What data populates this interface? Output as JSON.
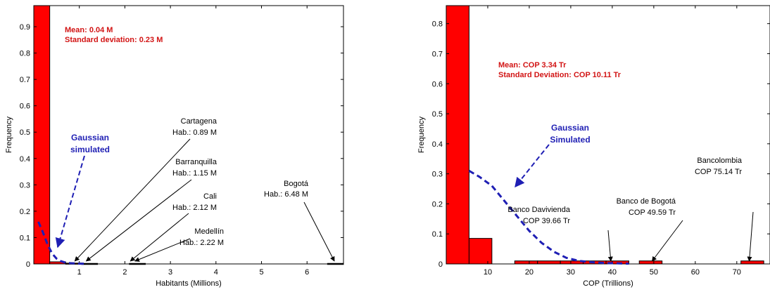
{
  "chart_data": [
    {
      "type": "bar",
      "xlabel": "Habitants (Millions)",
      "ylabel": "Frequency",
      "xlim": [
        0,
        6.8
      ],
      "ylim": [
        0,
        0.98
      ],
      "xticks": [
        "1",
        "2",
        "3",
        "4",
        "5",
        "6"
      ],
      "yticks": [
        "0",
        "0.1",
        "0.2",
        "0.3",
        "0.4",
        "0.5",
        "0.6",
        "0.7",
        "0.8",
        "0.9"
      ],
      "grid": false,
      "bars": [
        {
          "x0": 0,
          "x1": 0.35,
          "value": 0.98
        },
        {
          "x0": 0.35,
          "x1": 0.7,
          "value": 0.008
        },
        {
          "x0": 0.7,
          "x1": 1.05,
          "value": 0.003
        },
        {
          "x0": 1.05,
          "x1": 1.4,
          "value": 0.002
        },
        {
          "x0": 2.1,
          "x1": 2.45,
          "value": 0.002
        },
        {
          "x0": 6.45,
          "x1": 6.8,
          "value": 0.002
        }
      ],
      "gaussian": {
        "x": [
          0.1,
          0.2,
          0.3,
          0.4,
          0.5,
          0.6,
          0.7,
          0.8,
          0.9,
          1.0,
          1.1
        ],
        "y": [
          0.16,
          0.12,
          0.075,
          0.04,
          0.02,
          0.01,
          0.005,
          0.003,
          0.002,
          0.001,
          0.001
        ]
      },
      "stats": {
        "mean": "Mean: 0.04 M",
        "sd": "Standard deviation: 0.23 M"
      },
      "gaussian_label": [
        "Gaussian",
        "simulated"
      ],
      "annotations": [
        {
          "lines": [
            "Cartagena",
            "Hab.: 0.89 M"
          ],
          "target": [
            0.9,
            0.005
          ]
        },
        {
          "lines": [
            "Barranquilla",
            "Hab.: 1.15 M"
          ],
          "target": [
            1.15,
            0.005
          ]
        },
        {
          "lines": [
            "Cali",
            "Hab.: 2.12 M"
          ],
          "target": [
            2.12,
            0.005
          ]
        },
        {
          "lines": [
            "Medellín",
            "Hab.: 2.22 M"
          ],
          "target": [
            2.22,
            0.005
          ]
        },
        {
          "lines": [
            "Bogotá",
            "Hab.: 6.48 M"
          ],
          "target": [
            6.6,
            0.005
          ]
        }
      ],
      "colors": {
        "bar": "#ff0000",
        "gauss": "#1f1fb4",
        "stat": "#d21414"
      }
    },
    {
      "type": "bar",
      "xlabel": "COP (Trillions)",
      "ylabel": "Frequency",
      "xlim": [
        0,
        78
      ],
      "ylim": [
        0,
        0.86
      ],
      "xticks": [
        "10",
        "20",
        "30",
        "40",
        "50",
        "60",
        "70"
      ],
      "yticks": [
        "0",
        "0.1",
        "0.2",
        "0.3",
        "0.4",
        "0.5",
        "0.6",
        "0.7",
        "0.8"
      ],
      "grid": false,
      "bars": [
        {
          "x0": 0,
          "x1": 5.5,
          "value": 0.86
        },
        {
          "x0": 5.5,
          "x1": 11,
          "value": 0.085
        },
        {
          "x0": 16.5,
          "x1": 22,
          "value": 0.01
        },
        {
          "x0": 22,
          "x1": 27.5,
          "value": 0.01
        },
        {
          "x0": 27.5,
          "x1": 33,
          "value": 0.01
        },
        {
          "x0": 33,
          "x1": 38.5,
          "value": 0.01
        },
        {
          "x0": 38.5,
          "x1": 44,
          "value": 0.01
        },
        {
          "x0": 46.5,
          "x1": 52,
          "value": 0.01
        },
        {
          "x0": 71,
          "x1": 76.5,
          "value": 0.01
        }
      ],
      "gaussian": {
        "x": [
          5.5,
          8,
          11,
          14,
          17,
          20,
          23,
          26,
          29,
          32,
          35,
          38,
          41,
          44
        ],
        "y": [
          0.31,
          0.29,
          0.26,
          0.21,
          0.16,
          0.11,
          0.07,
          0.04,
          0.02,
          0.01,
          0.006,
          0.003,
          0.002,
          0.001
        ]
      },
      "stats": {
        "mean": "Mean: COP 3.34 Tr",
        "sd": "Standard Deviation: COP 10.11 Tr"
      },
      "gaussian_label": [
        "Gaussian",
        "Simulated"
      ],
      "annotations": [
        {
          "lines": [
            "Banco Davivienda",
            "COP 39.66 Tr"
          ],
          "target": [
            39.66,
            0.02
          ]
        },
        {
          "lines": [
            "Banco de Bogotá",
            "COP 49.59 Tr"
          ],
          "target": [
            49.59,
            0.02
          ]
        },
        {
          "lines": [
            "Bancolombia",
            "COP 75.14 Tr"
          ],
          "target": [
            73,
            0.02
          ]
        }
      ],
      "colors": {
        "bar": "#ff0000",
        "gauss": "#1f1fb4",
        "stat": "#d21414"
      }
    }
  ]
}
